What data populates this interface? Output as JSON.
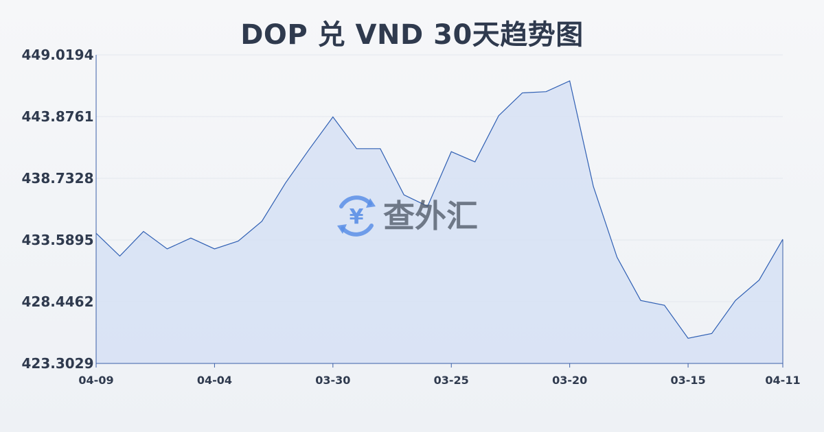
{
  "title": "DOP 兑 VND 30天趋势图",
  "watermark": {
    "icon": "yen-exchange-icon",
    "text": "查外汇",
    "color": "#3b82f6"
  },
  "colors": {
    "line": "#2f5fb3",
    "fill": "#d6e1f5",
    "grid": "#e3e7ee",
    "axis": "#3b5fa8"
  },
  "chart_data": {
    "type": "area",
    "title": "DOP 兑 VND 30天趋势图",
    "xlabel": "",
    "ylabel": "",
    "ylim": [
      423.3029,
      449.0194
    ],
    "yticks": [
      "449.0194",
      "443.8761",
      "438.7328",
      "433.5895",
      "428.4462",
      "423.3029"
    ],
    "xtick_labels": [
      "04-09",
      "04-04",
      "03-30",
      "03-25",
      "03-20",
      "03-15",
      "04-11"
    ],
    "grid": true,
    "legend": "none",
    "values": [
      434.15,
      432.25,
      434.3,
      432.85,
      433.75,
      432.85,
      433.5,
      435.15,
      438.35,
      441.15,
      443.85,
      441.2,
      441.2,
      437.35,
      436.4,
      440.95,
      440.1,
      443.95,
      445.85,
      445.95,
      446.85,
      438.05,
      432.15,
      428.55,
      428.15,
      425.4,
      425.8,
      428.55,
      430.25,
      433.65
    ]
  }
}
